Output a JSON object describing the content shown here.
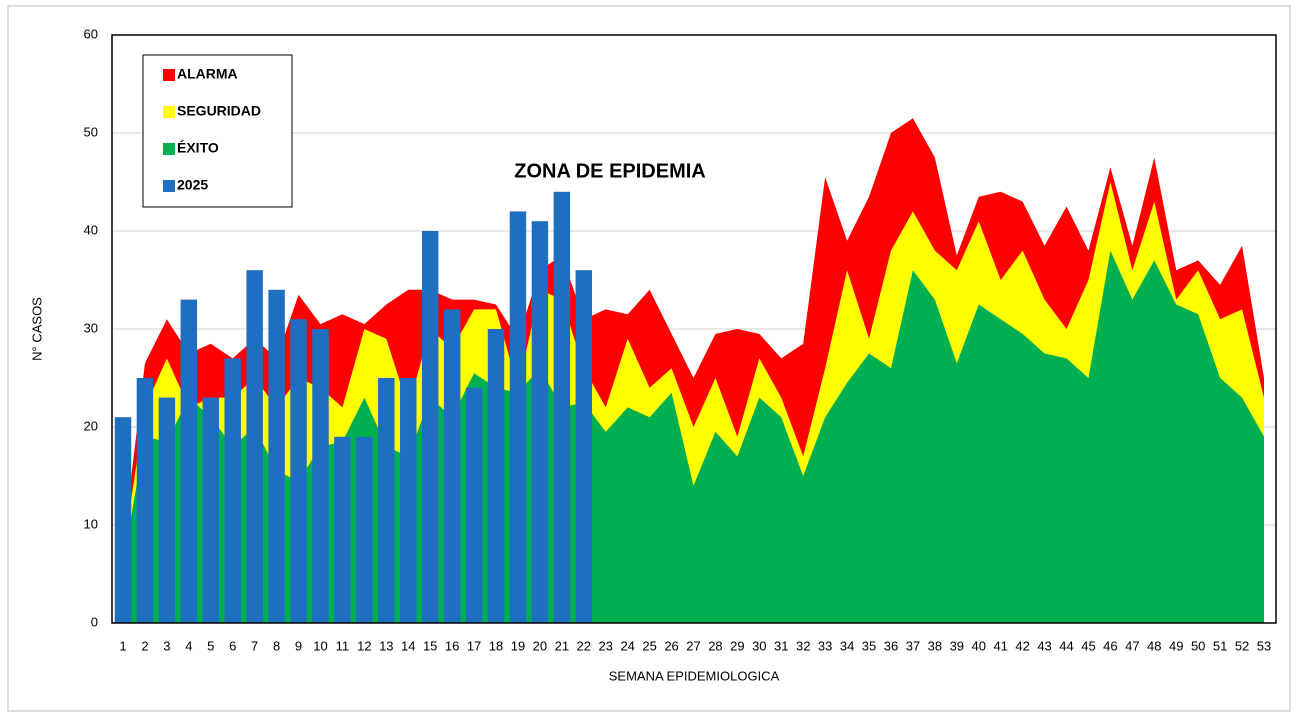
{
  "chart_data": {
    "type": "area",
    "categories": [
      1,
      2,
      3,
      4,
      5,
      6,
      7,
      8,
      9,
      10,
      11,
      12,
      13,
      14,
      15,
      16,
      17,
      18,
      19,
      20,
      21,
      22,
      23,
      24,
      25,
      26,
      27,
      28,
      29,
      30,
      31,
      32,
      33,
      34,
      35,
      36,
      37,
      38,
      39,
      40,
      41,
      42,
      43,
      44,
      45,
      46,
      47,
      48,
      49,
      50,
      51,
      52,
      53
    ],
    "series": [
      {
        "name": "ALARMA",
        "type": "area",
        "color": "#ff0000",
        "values": [
          8,
          26.5,
          31,
          27.5,
          28.5,
          27,
          29,
          27,
          33.5,
          30.5,
          31.5,
          30.5,
          32.5,
          34,
          34,
          33,
          33,
          32.5,
          29,
          36,
          37.5,
          31,
          32,
          31.5,
          34,
          29.5,
          25,
          29.5,
          30,
          29.5,
          27,
          28.5,
          45.5,
          39,
          43.5,
          50,
          51.5,
          47.5,
          37.5,
          43.5,
          44,
          43,
          38.5,
          42.5,
          38,
          46.5,
          38.5,
          47.5,
          36,
          37,
          34.5,
          38.5,
          25
        ]
      },
      {
        "name": "SEGURIDAD",
        "type": "area",
        "color": "#ffff00",
        "values": [
          7,
          22,
          27,
          22,
          23,
          23,
          25,
          22,
          25,
          24,
          22,
          30,
          29,
          22,
          30,
          28,
          32,
          32,
          24,
          34,
          33,
          26,
          22,
          29,
          24,
          26,
          20,
          25,
          19,
          27,
          23,
          17,
          26,
          36,
          29,
          38,
          42,
          38,
          36,
          41,
          35,
          38,
          33,
          30,
          35,
          45,
          36,
          43,
          33,
          36,
          31,
          32,
          23
        ]
      },
      {
        "name": "ÉXITO",
        "type": "area",
        "color": "#00b050",
        "values": [
          6,
          19,
          18.5,
          23,
          21,
          18,
          20,
          15.5,
          14.5,
          18,
          18.5,
          23,
          18,
          17,
          23,
          21,
          25.5,
          24,
          23.5,
          26,
          22,
          22.5,
          19.5,
          22,
          21,
          23.5,
          14,
          19.5,
          17,
          23,
          21,
          15,
          21,
          24.5,
          27.5,
          26,
          36,
          33,
          26.5,
          32.5,
          31,
          29.5,
          27.5,
          27,
          25,
          38,
          33,
          37,
          32.5,
          31.5,
          25,
          23,
          19
        ]
      },
      {
        "name": "2025",
        "type": "bar",
        "color": "#1f6fc0",
        "values": [
          21,
          25,
          23,
          33,
          23,
          27,
          36,
          34,
          31,
          30,
          19,
          19,
          25,
          25,
          40,
          32,
          24,
          30,
          42,
          41,
          44,
          36,
          null,
          null,
          null,
          null,
          null,
          null,
          null,
          null,
          null,
          null,
          null,
          null,
          null,
          null,
          null,
          null,
          null,
          null,
          null,
          null,
          null,
          null,
          null,
          null,
          null,
          null,
          null,
          null,
          null,
          null,
          null
        ]
      }
    ],
    "annotation": "ZONA DE EPIDEMIA",
    "ylabel": "N° CASOS",
    "xlabel": "SEMANA  EPIDEMIOLOGICA",
    "ylim": [
      0,
      60
    ],
    "yticks": [
      0,
      10,
      20,
      30,
      40,
      50,
      60
    ],
    "grid": true,
    "legend": "upper left"
  }
}
